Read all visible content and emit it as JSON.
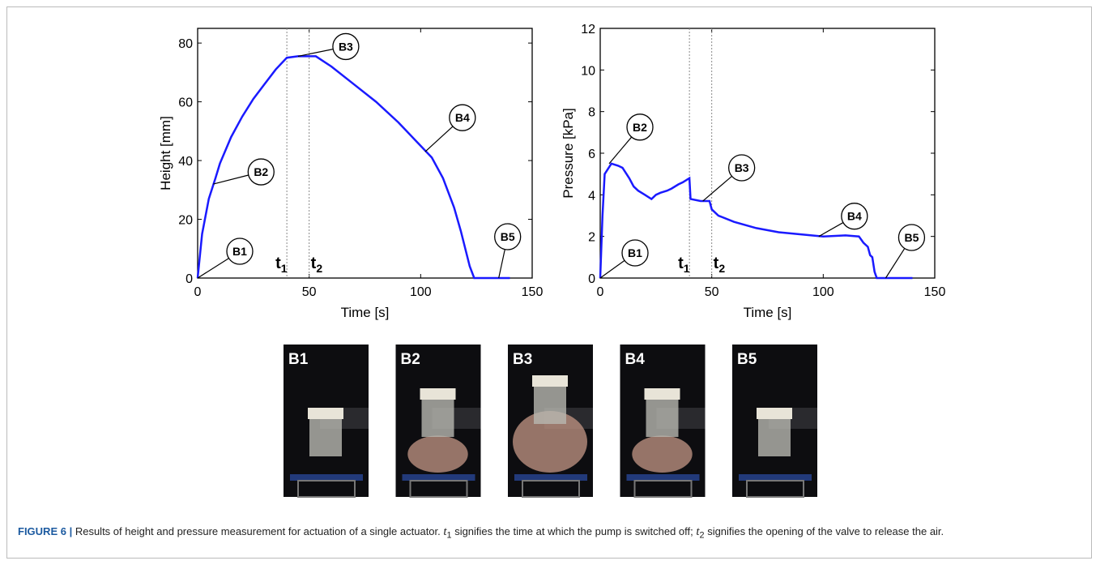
{
  "chart_data": [
    {
      "type": "line",
      "xlabel": "Time [s]",
      "ylabel": "Height [mm]",
      "color": "#1a1aff",
      "x": [
        0,
        2,
        5,
        8,
        10,
        15,
        20,
        25,
        30,
        35,
        40,
        45,
        50,
        53,
        60,
        70,
        80,
        90,
        100,
        105,
        110,
        115,
        118,
        122,
        124,
        130,
        140
      ],
      "values": [
        0,
        15,
        27,
        34,
        39,
        48,
        55,
        61,
        66,
        71,
        75,
        75.5,
        75.5,
        75.5,
        72,
        66,
        60,
        53,
        45,
        41,
        34,
        24,
        16,
        4,
        0,
        0,
        0
      ],
      "xlim": [
        0,
        150
      ],
      "xticks": [
        0,
        50,
        100,
        150
      ],
      "ylim": [
        0,
        85
      ],
      "yticks": [
        0,
        20,
        40,
        60,
        80
      ],
      "vlines": [
        {
          "x": 40,
          "text": "t",
          "sub": "1"
        },
        {
          "x": 50,
          "text": "t",
          "sub": "2"
        }
      ],
      "annotations": [
        {
          "text": "B1",
          "x": 0,
          "y": 0
        },
        {
          "text": "B2",
          "x": 7,
          "y": 32
        },
        {
          "text": "B3",
          "x": 45,
          "y": 75.5
        },
        {
          "text": "B4",
          "x": 102,
          "y": 43
        },
        {
          "text": "B5",
          "x": 135,
          "y": 0
        }
      ]
    },
    {
      "type": "line",
      "xlabel": "Time [s]",
      "ylabel": "Pressure [kPa]",
      "color": "#1a1aff",
      "x": [
        0,
        1,
        2,
        5,
        8,
        10,
        13,
        15,
        17,
        20,
        23,
        25,
        27,
        30,
        32,
        35,
        37,
        40,
        40.5,
        45,
        49,
        50,
        53,
        60,
        70,
        80,
        90,
        100,
        110,
        116,
        118,
        120,
        121,
        122,
        123,
        124,
        130,
        140
      ],
      "values": [
        0,
        3,
        5,
        5.5,
        5.4,
        5.3,
        4.8,
        4.4,
        4.2,
        4.0,
        3.8,
        4.0,
        4.1,
        4.2,
        4.3,
        4.5,
        4.6,
        4.8,
        3.8,
        3.7,
        3.7,
        3.3,
        3.0,
        2.7,
        2.4,
        2.2,
        2.1,
        2.0,
        2.05,
        2.0,
        1.7,
        1.5,
        1.1,
        1.0,
        0.3,
        0,
        0,
        0
      ],
      "xlim": [
        0,
        150
      ],
      "xticks": [
        0,
        50,
        100,
        150
      ],
      "ylim": [
        0,
        12
      ],
      "yticks": [
        0,
        2,
        4,
        6,
        8,
        10,
        12
      ],
      "vlines": [
        {
          "x": 40,
          "text": "t",
          "sub": "1"
        },
        {
          "x": 50,
          "text": "t",
          "sub": "2"
        }
      ],
      "annotations": [
        {
          "text": "B1",
          "x": 0,
          "y": 0
        },
        {
          "text": "B2",
          "x": 4,
          "y": 5.5
        },
        {
          "text": "B3",
          "x": 46,
          "y": 3.7
        },
        {
          "text": "B4",
          "x": 98,
          "y": 2
        },
        {
          "text": "B5",
          "x": 128,
          "y": 0
        }
      ]
    }
  ],
  "photos": [
    "B1",
    "B2",
    "B3",
    "B4",
    "B5"
  ],
  "caption": {
    "label": "FIGURE 6 |",
    "parts": [
      "Results of height and pressure measurement for actuation of a single actuator. ",
      "t",
      "1",
      " signifies the time at which the pump is switched off; ",
      "t",
      "2",
      " signifies the opening of the valve to release the air."
    ]
  }
}
